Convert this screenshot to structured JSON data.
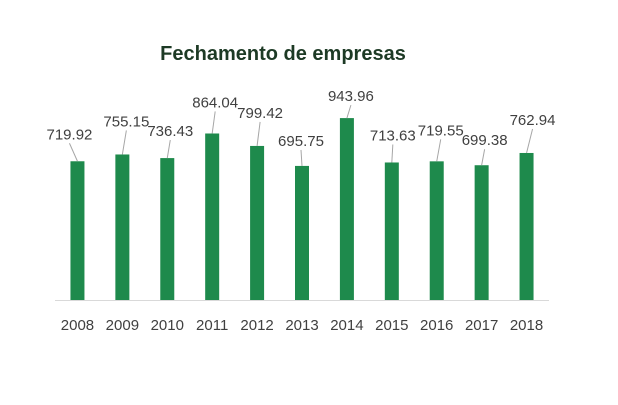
{
  "chart_data": {
    "type": "bar",
    "title": "Fechamento de empresas",
    "categories": [
      "2008",
      "2009",
      "2010",
      "2011",
      "2012",
      "2013",
      "2014",
      "2015",
      "2016",
      "2017",
      "2018"
    ],
    "series": [
      {
        "values": [
          719.92,
          755.15,
          736.43,
          864.04,
          799.42,
          695.75,
          943.96,
          713.63,
          719.55,
          699.38,
          762.94
        ],
        "labels": [
          "719.92",
          "755.15",
          "736.43",
          "864.04",
          "799.42",
          "695.75",
          "943.96",
          "713.63",
          "719.55",
          "699.38",
          "762.94"
        ],
        "color": "#1e8a4c"
      }
    ],
    "xlabel": "",
    "ylabel": "",
    "ylim": [
      0,
      960
    ],
    "grid": false,
    "legend": "none",
    "axis_color": "#d9d9d9",
    "leader_line_color": "#a6a6a6"
  }
}
